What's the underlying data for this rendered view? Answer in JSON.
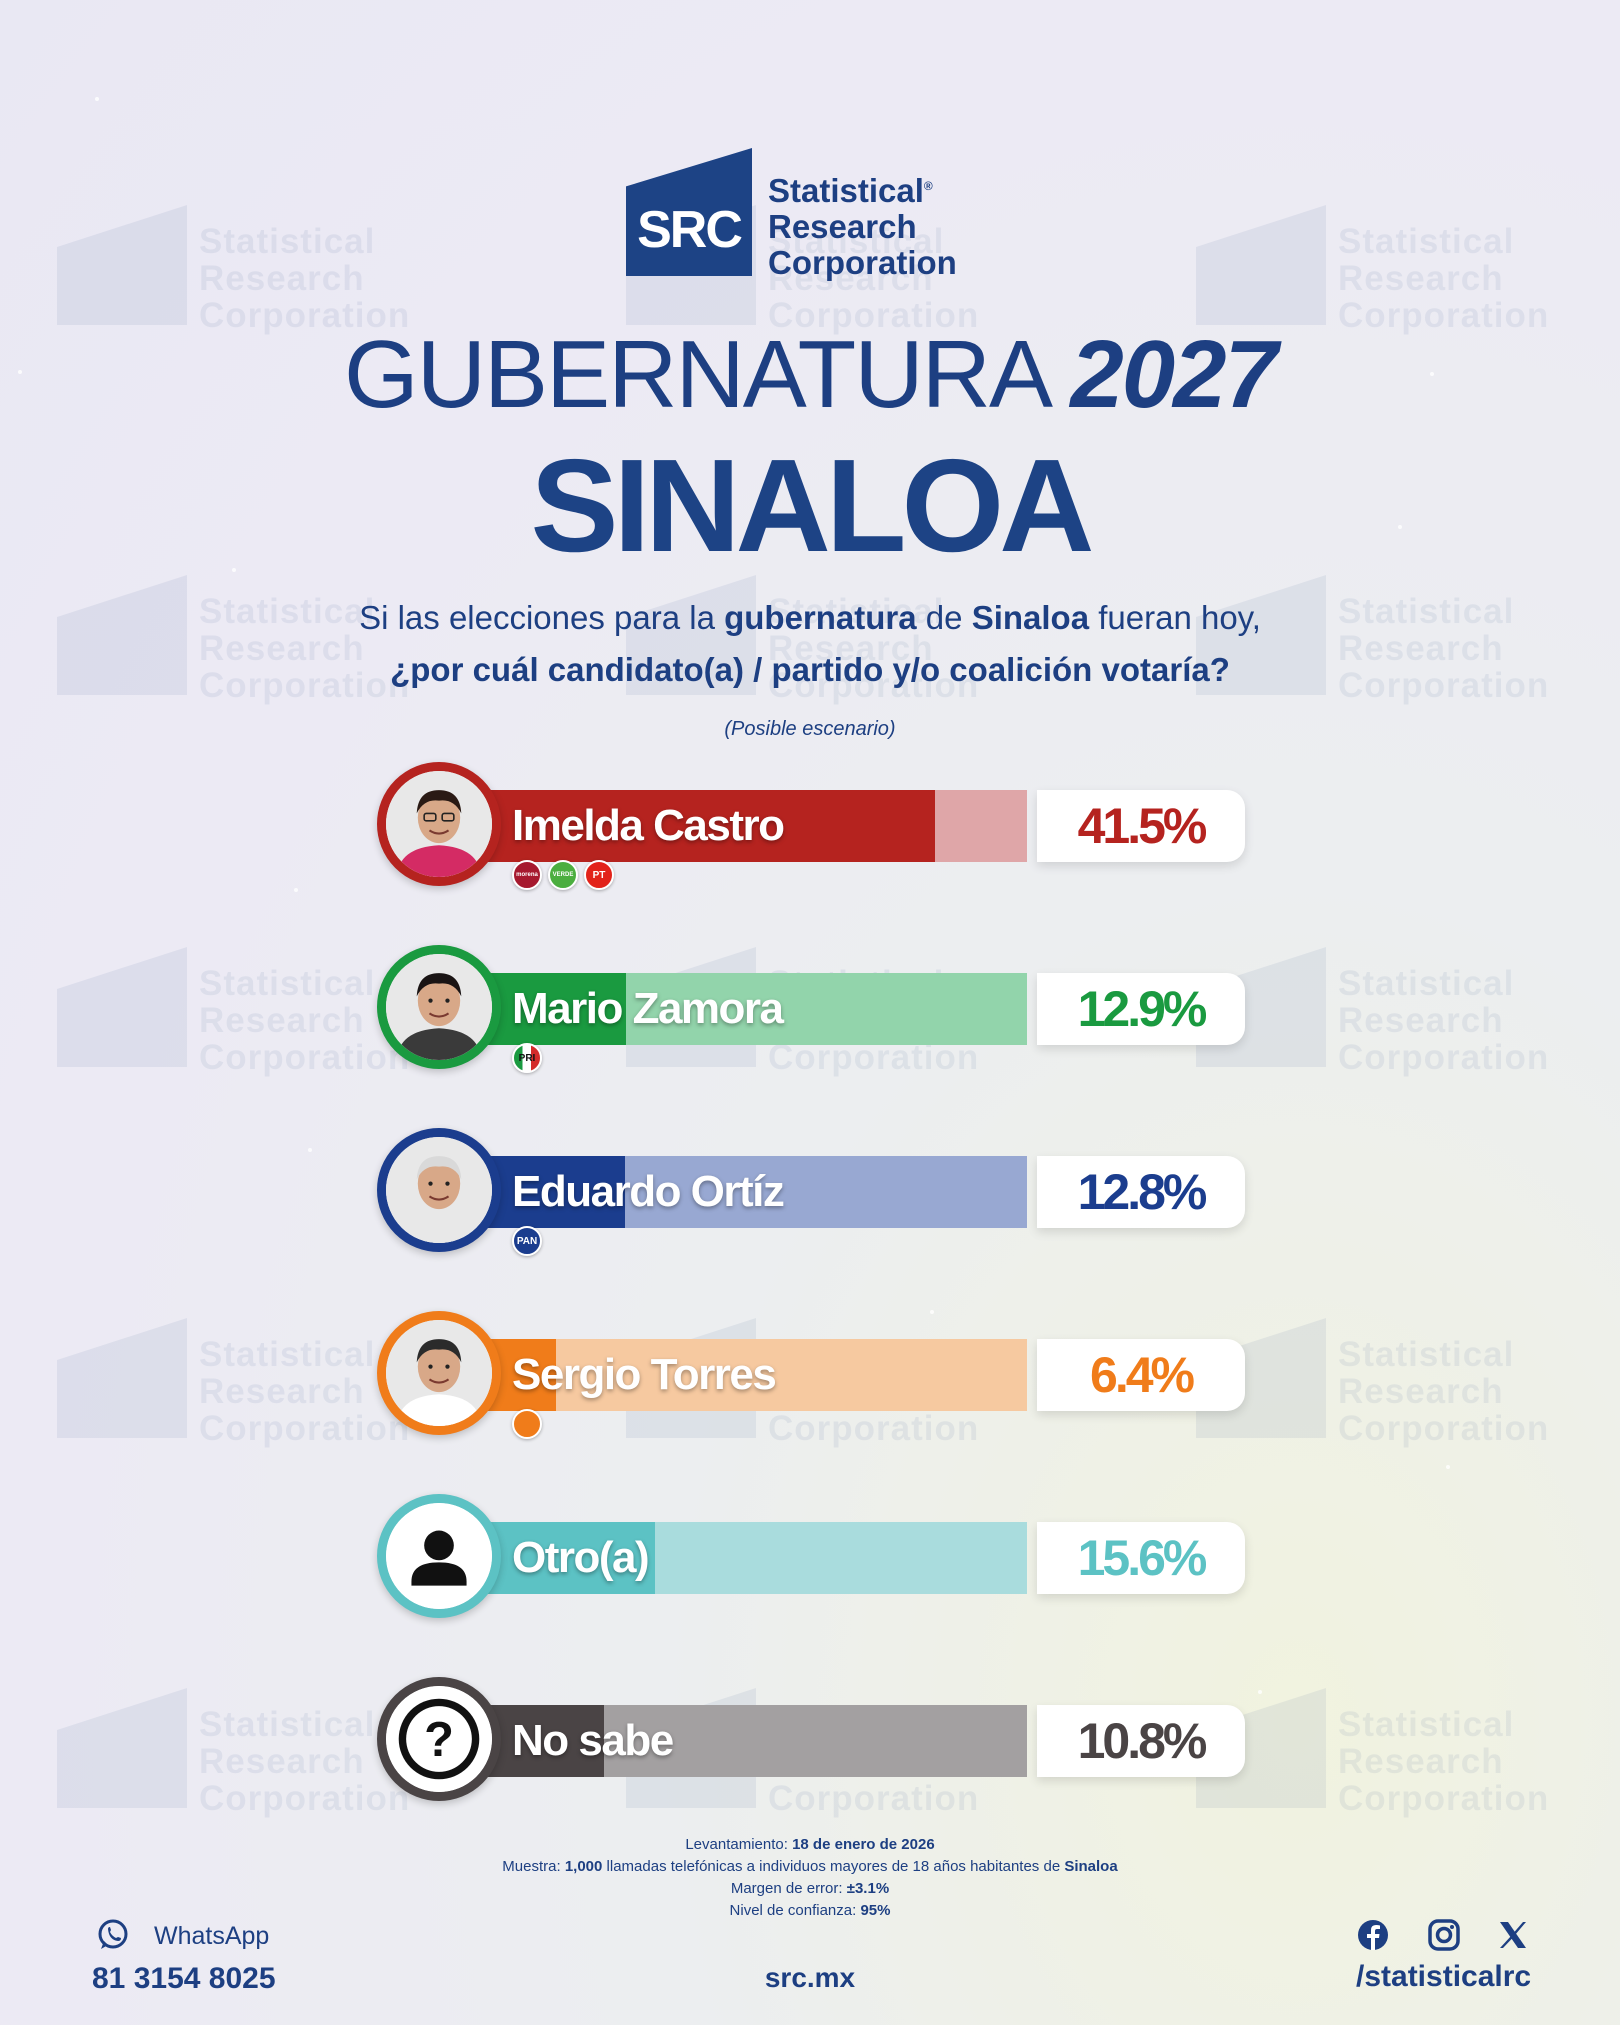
{
  "brand": {
    "logo_text": "SRC",
    "name_line1": "Statistical",
    "name_line2": "Research",
    "name_line3": "Corporation",
    "registered": "®"
  },
  "title": {
    "line1": "GUBERNATURA",
    "year": "2027",
    "state": "SINALOA"
  },
  "question": {
    "part1": "Si las elecciones para la ",
    "bold1": "gubernatura",
    "part2": " de ",
    "bold2": "Sinaloa",
    "part3": " fueran hoy,",
    "line2": "¿por cuál candidato(a) / partido y/o coalición votaría?",
    "scenario": "(Posible escenario)"
  },
  "chart_data": {
    "type": "bar",
    "categories": [
      "Imelda Castro",
      "Mario Zamora",
      "Eduardo Ortíz",
      "Sergio Torres",
      "Otro(a)",
      "No sabe"
    ],
    "values": [
      41.5,
      12.9,
      12.8,
      6.4,
      15.6,
      10.8
    ],
    "labels": [
      "41.5%",
      "12.9%",
      "12.8%",
      "6.4%",
      "15.6%",
      "10.8%"
    ],
    "colors": [
      "#b5231f",
      "#1a9a40",
      "#1b3d8e",
      "#f07c1a",
      "#5cc2c4",
      "#4a4445"
    ],
    "light_colors": [
      "#dfa6a8",
      "#92d4ab",
      "#98a8d2",
      "#f6c9a0",
      "#a9dcdd",
      "#a3a0a1"
    ],
    "parties": [
      [
        "morena",
        "VERDE",
        "PT"
      ],
      [
        "PRI"
      ],
      [
        "PAN"
      ],
      [
        "MC"
      ],
      [],
      []
    ]
  },
  "methodology": {
    "date_label": "Levantamiento: ",
    "date_value": "18 de enero de 2026",
    "sample_label": "Muestra: ",
    "sample_value": "1,000",
    "sample_text": " llamadas telefónicas a individuos mayores de 18 años habitantes de ",
    "sample_state": "Sinaloa",
    "margin_label": "Margen de error: ",
    "margin_value": "±3.1%",
    "confidence_label": "Nivel de confianza: ",
    "confidence_value": "95%"
  },
  "footer": {
    "whatsapp_label": "WhatsApp",
    "phone": "81 3154 8025",
    "website": "src.mx",
    "handle": "/statisticalrc"
  }
}
